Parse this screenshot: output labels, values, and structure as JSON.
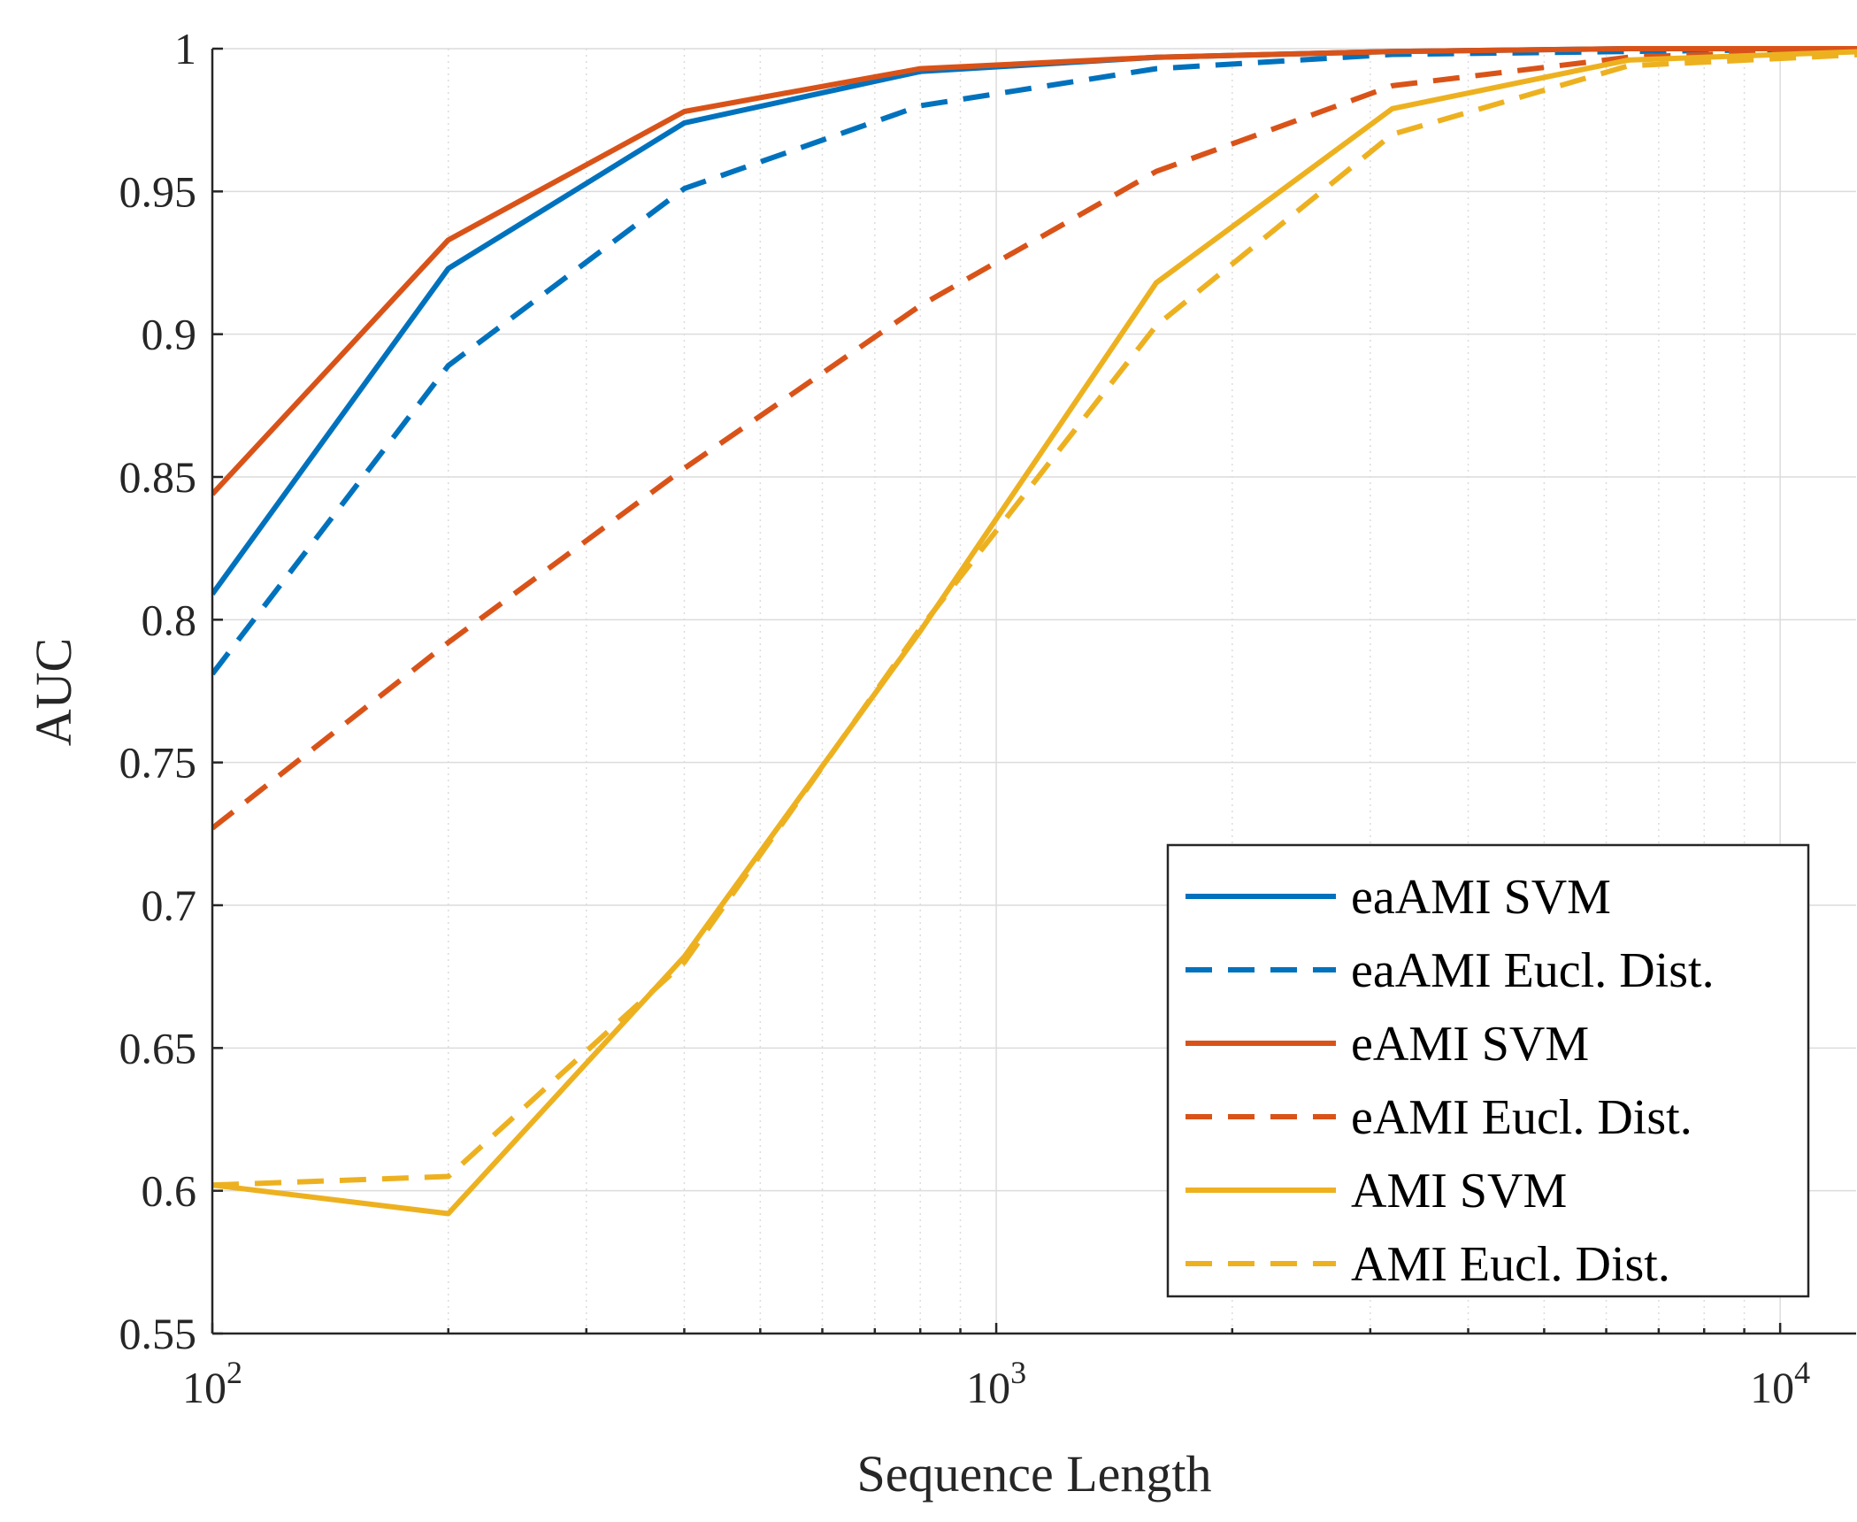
{
  "chart_data": {
    "type": "line",
    "title": "",
    "xlabel": "Sequence Length",
    "ylabel": "AUC",
    "xscale": "log",
    "xlim": [
      100,
      12500
    ],
    "ylim": [
      0.55,
      1
    ],
    "grid": true,
    "legend_position": "bottom-right",
    "x_ticks": [
      {
        "value": 100,
        "base": "10",
        "exp": "2"
      },
      {
        "value": 1000,
        "base": "10",
        "exp": "3"
      },
      {
        "value": 10000,
        "base": "10",
        "exp": "4"
      }
    ],
    "y_ticks": [
      {
        "value": 0.55,
        "label": "0.55"
      },
      {
        "value": 0.6,
        "label": "0.6"
      },
      {
        "value": 0.65,
        "label": "0.65"
      },
      {
        "value": 0.7,
        "label": "0.7"
      },
      {
        "value": 0.75,
        "label": "0.75"
      },
      {
        "value": 0.8,
        "label": "0.8"
      },
      {
        "value": 0.85,
        "label": "0.85"
      },
      {
        "value": 0.9,
        "label": "0.9"
      },
      {
        "value": 0.95,
        "label": "0.95"
      },
      {
        "value": 1,
        "label": "1"
      }
    ],
    "x": [
      100,
      200,
      400,
      800,
      1600,
      3200,
      6400,
      12800
    ],
    "series": [
      {
        "name": "eaAMI SVM",
        "color": "#0072BD",
        "style": "solid",
        "values": [
          0.809,
          0.923,
          0.974,
          0.992,
          0.997,
          0.999,
          1.0,
          1.0
        ]
      },
      {
        "name": "eaAMI Eucl. Dist.",
        "color": "#0072BD",
        "style": "dashed",
        "values": [
          0.781,
          0.889,
          0.951,
          0.98,
          0.993,
          0.998,
          0.999,
          1.0
        ]
      },
      {
        "name": "eAMI SVM",
        "color": "#D95319",
        "style": "solid",
        "values": [
          0.844,
          0.933,
          0.978,
          0.993,
          0.997,
          0.999,
          1.0,
          1.0
        ]
      },
      {
        "name": "eAMI Eucl. Dist.",
        "color": "#D95319",
        "style": "dashed",
        "values": [
          0.727,
          0.792,
          0.853,
          0.91,
          0.957,
          0.987,
          0.997,
          1.0
        ]
      },
      {
        "name": "AMI SVM",
        "color": "#EDB120",
        "style": "solid",
        "values": [
          0.602,
          0.592,
          0.682,
          0.796,
          0.918,
          0.979,
          0.996,
          0.999
        ]
      },
      {
        "name": "AMI Eucl. Dist.",
        "color": "#EDB120",
        "style": "dashed",
        "values": [
          0.602,
          0.605,
          0.68,
          0.797,
          0.903,
          0.97,
          0.994,
          0.998
        ]
      }
    ]
  }
}
